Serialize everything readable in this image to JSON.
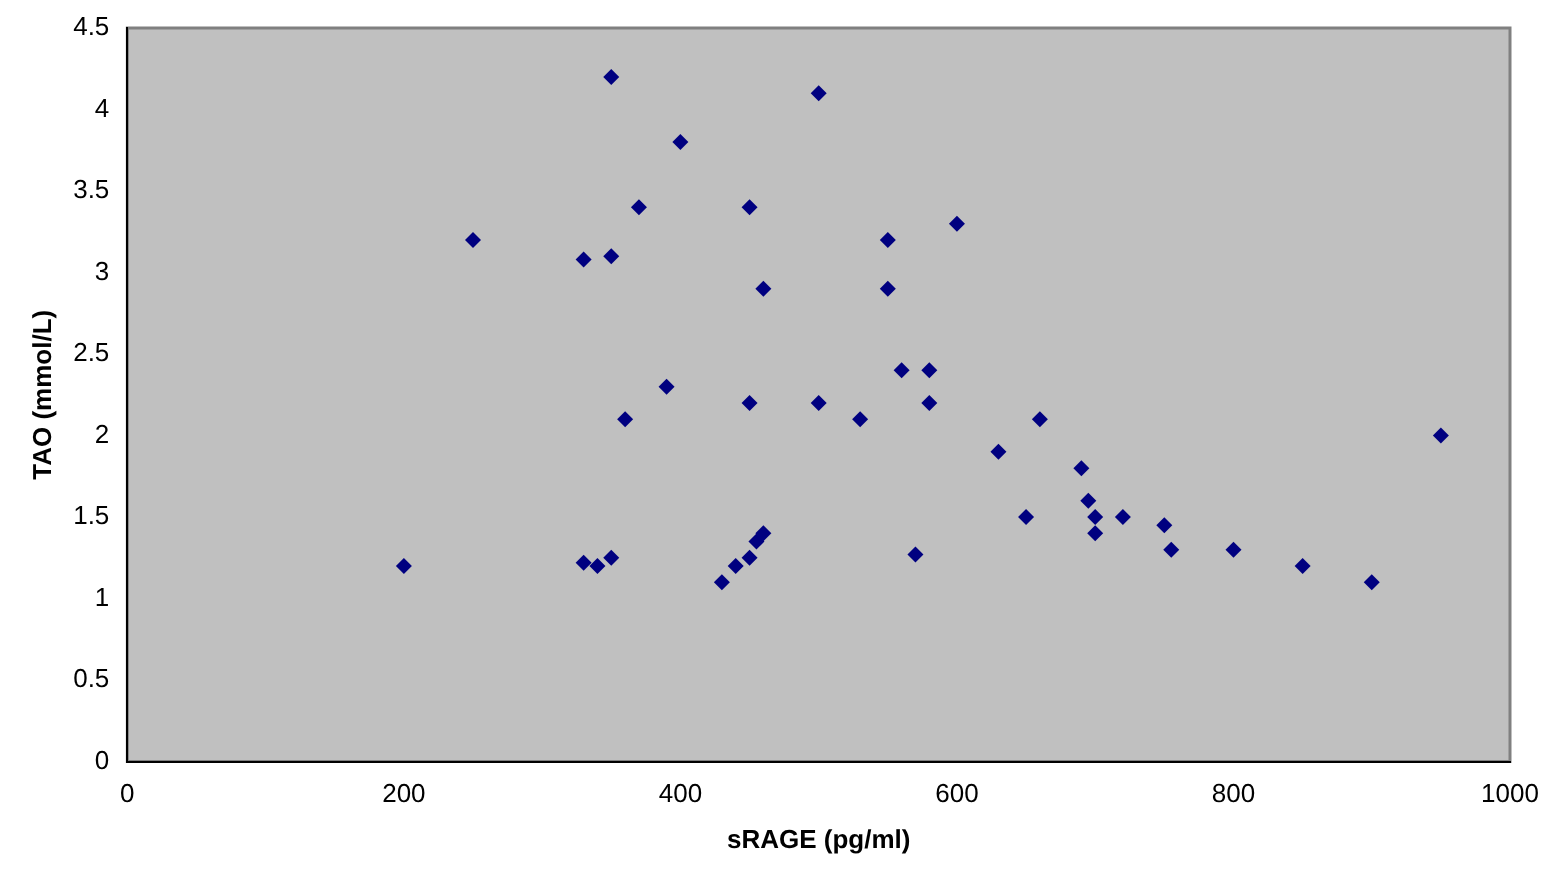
{
  "chart_data": {
    "type": "scatter",
    "xlabel": "sRAGE (pg/ml)",
    "ylabel": "TAO (mmol/L)",
    "x": [
      200,
      250,
      330,
      330,
      340,
      350,
      350,
      350,
      360,
      370,
      390,
      400,
      430,
      440,
      450,
      450,
      450,
      455,
      460,
      460,
      500,
      500,
      530,
      550,
      550,
      560,
      570,
      580,
      580,
      600,
      630,
      650,
      660,
      690,
      695,
      700,
      700,
      720,
      750,
      755,
      800,
      850,
      900,
      950
    ],
    "series": [
      {
        "color": "#000080",
        "values": [
          1.2,
          3.2,
          3.08,
          1.22,
          1.2,
          4.2,
          3.1,
          1.25,
          2.1,
          3.4,
          2.3,
          3.8,
          1.1,
          1.2,
          3.4,
          2.2,
          1.25,
          1.35,
          2.9,
          1.4,
          4.1,
          2.2,
          2.1,
          3.2,
          2.9,
          2.4,
          1.27,
          2.4,
          2.2,
          3.3,
          1.9,
          1.5,
          2.1,
          1.8,
          1.6,
          1.5,
          1.4,
          1.5,
          1.45,
          1.3,
          1.3,
          1.2,
          1.1,
          2.0
        ]
      }
    ],
    "xlim": [
      0,
      1000
    ],
    "xticks": [
      0,
      200,
      400,
      600,
      800,
      1000
    ],
    "ylim": [
      0,
      4.5
    ],
    "yticks": [
      0,
      0.5,
      1,
      1.5,
      2,
      2.5,
      3,
      3.5,
      4,
      4.5
    ],
    "marker": "diamond",
    "grid": false,
    "legend": false
  }
}
